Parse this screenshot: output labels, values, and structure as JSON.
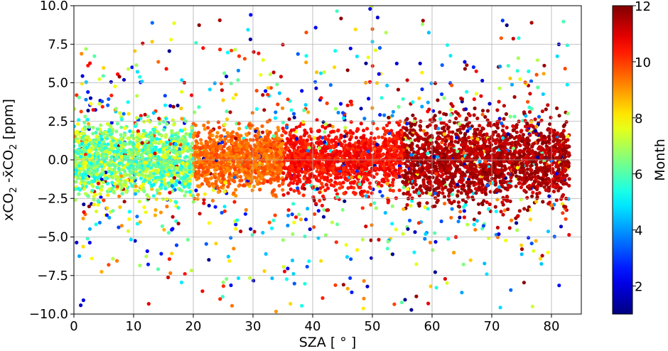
{
  "chart_data": {
    "type": "scatter",
    "xlabel": "SZA [$^\\circ$]",
    "xlabel_display": "SZA [ ° ]",
    "ylabel": "xCO$_2$ -$\\bar{x}CO_2$ [ppm]",
    "ylabel_parts": {
      "a": "xCO",
      "a_sub": "2",
      "b": " -x̄CO",
      "b_sub": "2",
      "c": " [ppm]"
    },
    "xlim": [
      0,
      85
    ],
    "ylim": [
      -10,
      10
    ],
    "xticks": [
      "0",
      "10",
      "20",
      "30",
      "40",
      "50",
      "60",
      "70",
      "80"
    ],
    "yticks": [
      "−10.0",
      "−7.5",
      "−5.0",
      "−2.5",
      "0.0",
      "2.5",
      "5.0",
      "7.5",
      "10.0"
    ],
    "grid": true,
    "colormap": "jet",
    "colorbar": {
      "label": "Month",
      "range": [
        1,
        12
      ],
      "ticks": [
        "2",
        "4",
        "6",
        "8",
        "10",
        "12"
      ]
    },
    "approx_structure": [
      {
        "sza_range": [
          0,
          20
        ],
        "month_range": [
          5,
          8
        ],
        "spread_ppm": 1.1
      },
      {
        "sza_range": [
          20,
          35
        ],
        "month_range": [
          9,
          10
        ],
        "spread_ppm": 0.9
      },
      {
        "sza_range": [
          35,
          55
        ],
        "month_range": [
          10,
          11
        ],
        "spread_ppm": 1.0
      },
      {
        "sza_range": [
          55,
          83
        ],
        "month_range": [
          11,
          12
        ],
        "spread_ppm": 1.3
      }
    ]
  }
}
